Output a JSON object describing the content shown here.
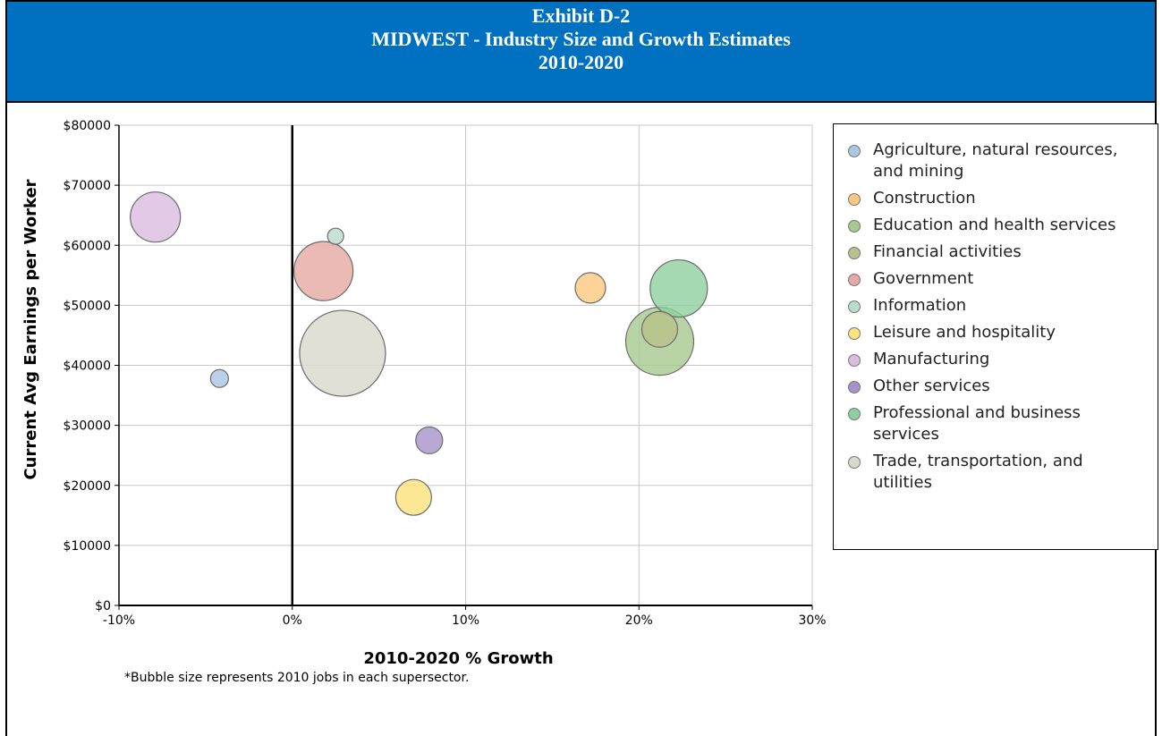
{
  "header": {
    "line1": "Exhibit D-2",
    "line2": "MIDWEST - Industry Size and Growth Estimates",
    "line3": "2010-2020"
  },
  "note": "*Bubble size represents 2010 jobs in each supersector.",
  "chart_data": {
    "type": "scatter",
    "subtype": "bubble",
    "xlabel": "2010-2020 % Growth",
    "ylabel": "Current Avg Earnings per Worker",
    "xlim": [
      -10,
      30
    ],
    "ylim": [
      0,
      80000
    ],
    "x_ticks": [
      "-10%",
      "0%",
      "10%",
      "20%",
      "30%"
    ],
    "y_ticks": [
      "$0",
      "$10000",
      "$20000",
      "$30000",
      "$40000",
      "$50000",
      "$60000",
      "$70000",
      "$80000"
    ],
    "grid": true,
    "legend_position": "right",
    "series": [
      {
        "name": "Agriculture, natural resources, and mining",
        "color": "#a9c6e3",
        "x": -4.2,
        "y": 37800,
        "size": 10
      },
      {
        "name": "Construction",
        "color": "#fbc97e",
        "x": 17.2,
        "y": 52900,
        "size": 17
      },
      {
        "name": "Education and health services",
        "color": "#a6c98d",
        "x": 21.2,
        "y": 44000,
        "size": 38
      },
      {
        "name": "Financial activities",
        "color": "#b8c18a",
        "x": 21.2,
        "y": 46000,
        "size": 20
      },
      {
        "name": "Government",
        "color": "#e6a9a3",
        "x": 1.8,
        "y": 55700,
        "size": 33
      },
      {
        "name": "Information",
        "color": "#b9dccd",
        "x": 2.5,
        "y": 61500,
        "size": 9
      },
      {
        "name": "Leisure and hospitality",
        "color": "#fbe27a",
        "x": 7.0,
        "y": 18000,
        "size": 20
      },
      {
        "name": "Manufacturing",
        "color": "#dbbbe0",
        "x": -7.9,
        "y": 64700,
        "size": 28
      },
      {
        "name": "Other services",
        "color": "#a792c9",
        "x": 7.9,
        "y": 27500,
        "size": 15
      },
      {
        "name": "Professional and business services",
        "color": "#8fcf9f",
        "x": 22.3,
        "y": 52800,
        "size": 32
      },
      {
        "name": "Trade, transportation, and utilities",
        "color": "#d9d8cc",
        "x": 2.9,
        "y": 42000,
        "size": 48
      }
    ]
  }
}
